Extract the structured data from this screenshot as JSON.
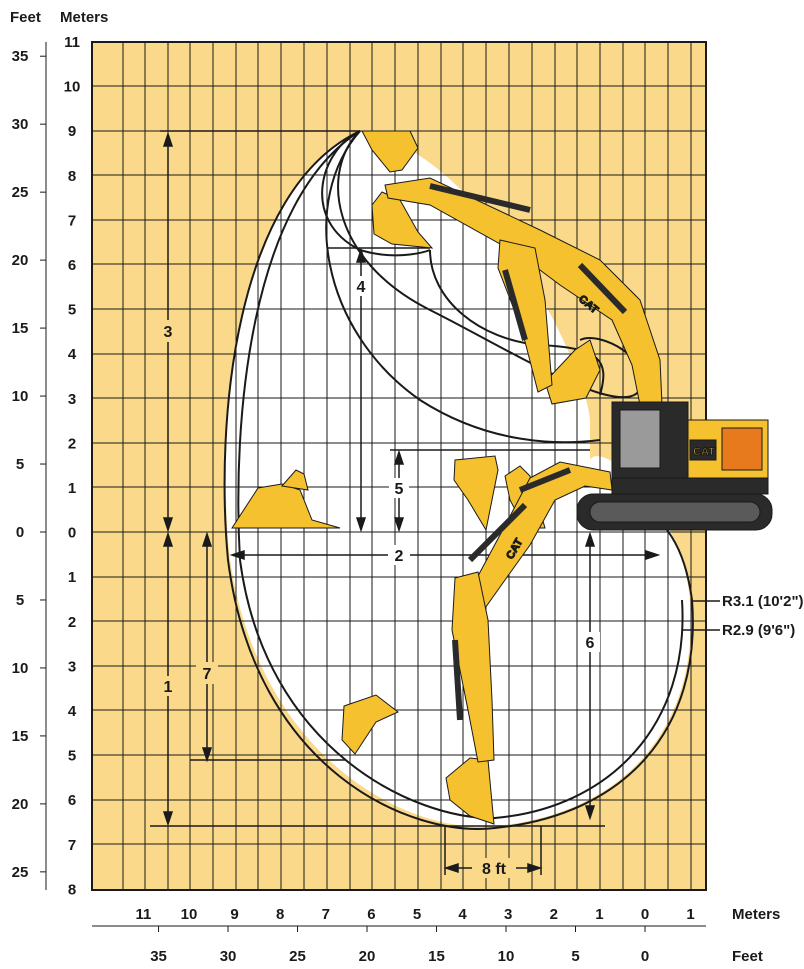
{
  "axes": {
    "feet_header": "Feet",
    "meters_header": "Meters",
    "left_feet_ticks": [
      "35",
      "30",
      "25",
      "20",
      "15",
      "10",
      "5",
      "0",
      "5",
      "10",
      "15",
      "20",
      "25"
    ],
    "left_meter_ticks": [
      "11",
      "10",
      "9",
      "8",
      "7",
      "6",
      "5",
      "4",
      "3",
      "2",
      "1",
      "0",
      "1",
      "2",
      "3",
      "4",
      "5",
      "6",
      "7",
      "8"
    ],
    "bottom_meter_ticks": [
      "11",
      "10",
      "9",
      "8",
      "7",
      "6",
      "5",
      "4",
      "3",
      "2",
      "1",
      "0",
      "1"
    ],
    "bottom_feet_ticks": [
      "35",
      "30",
      "25",
      "20",
      "15",
      "10",
      "5",
      "0"
    ],
    "bottom_meters_label": "Meters",
    "bottom_feet_label": "Feet"
  },
  "dimensions": {
    "d1": "1",
    "d2": "2",
    "d3": "3",
    "d4": "4",
    "d5": "5",
    "d6": "6",
    "d7": "7",
    "d8": "8 ft"
  },
  "callouts": {
    "r31": "R3.1 (10'2\")",
    "r29": "R2.9 (9'6\")"
  },
  "brand": {
    "cab_logo": "CAT",
    "boom_logo": "CAT",
    "stick_logo": "CAT"
  },
  "colors": {
    "grid_fill": "#fbd98a",
    "grid_line": "#1a1a1a",
    "machine_yellow": "#f5c12e",
    "machine_dark": "#2a2a2a",
    "engine_orange": "#e87a1e"
  }
}
